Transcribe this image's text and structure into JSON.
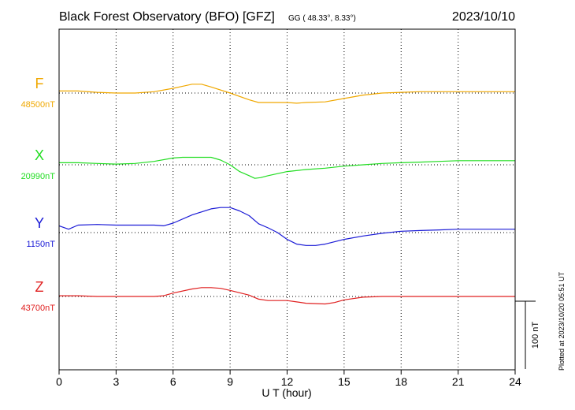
{
  "header": {
    "title": "Black Forest Observatory (BFO)  [GFZ]",
    "coords": "GG ( 48.33°,   8.33°)",
    "date": "2023/10/10"
  },
  "footer": {
    "plotted_note": "Plotted at 2023/10/20 05:51 UT"
  },
  "chart_data": {
    "type": "line",
    "title": "Black Forest Observatory (BFO)  [GFZ]",
    "xlabel": "U T (hour)",
    "ylabel": "",
    "x_ticks": [
      "0",
      "3",
      "6",
      "9",
      "12",
      "15",
      "18",
      "21",
      "24"
    ],
    "xlim": [
      0,
      24
    ],
    "grid": true,
    "scale_bar": {
      "label": "100 nT",
      "value_nT": 100
    },
    "series": [
      {
        "name": "F",
        "baseline_label": "48500nT",
        "baseline_nT": 48500,
        "color": "#f0a800",
        "x": [
          0,
          1,
          2,
          3,
          4,
          5,
          6,
          6.5,
          7,
          7.5,
          8,
          9,
          10,
          10.5,
          11,
          11.5,
          12,
          12.5,
          13,
          14,
          15,
          16,
          17,
          18,
          19,
          20,
          21,
          22,
          23,
          24
        ],
        "y": [
          48503,
          48503,
          48501,
          48500,
          48500,
          48502,
          48507,
          48510,
          48513,
          48513,
          48509,
          48500,
          48490,
          48486,
          48486,
          48486,
          48486,
          48485,
          48486,
          48487,
          48492,
          48497,
          48500,
          48501,
          48502,
          48502,
          48502,
          48502,
          48502,
          48502
        ]
      },
      {
        "name": "X",
        "baseline_label": "20990nT",
        "baseline_nT": 20990,
        "color": "#22dd22",
        "x": [
          0,
          1,
          2,
          3,
          4,
          5,
          6,
          6.5,
          7,
          8,
          8.5,
          9,
          9.5,
          10,
          10.3,
          10.6,
          11,
          12,
          13,
          14,
          15,
          16,
          17,
          18,
          19,
          20,
          21,
          22,
          23,
          24
        ],
        "y": [
          20993,
          20993,
          20992,
          20991,
          20992,
          20995,
          21000,
          21001,
          21001,
          21001,
          20997,
          20990,
          20980,
          20974,
          20970,
          20971,
          20974,
          20980,
          20983,
          20985,
          20988,
          20990,
          20992,
          20993,
          20994,
          20995,
          20996,
          20996,
          20996,
          20996
        ]
      },
      {
        "name": "Y",
        "baseline_label": "1150nT",
        "baseline_nT": 1150,
        "color": "#1a1ad6",
        "x": [
          0,
          0.5,
          1,
          2,
          3,
          4,
          5,
          5.5,
          6,
          7,
          8,
          8.5,
          9,
          9.5,
          10,
          10.5,
          11,
          11.5,
          12,
          12.5,
          13,
          13.5,
          14,
          15,
          16,
          17,
          18,
          19,
          20,
          21,
          22,
          23,
          24
        ],
        "y": [
          1160,
          1155,
          1161,
          1162,
          1161,
          1161,
          1161,
          1160,
          1164,
          1176,
          1185,
          1187,
          1187,
          1182,
          1175,
          1163,
          1157,
          1150,
          1140,
          1133,
          1131,
          1131,
          1133,
          1140,
          1145,
          1149,
          1152,
          1153,
          1154,
          1155,
          1155,
          1155,
          1155
        ]
      },
      {
        "name": "Z",
        "baseline_label": "43700nT",
        "baseline_nT": 43700,
        "color": "#e02020",
        "x": [
          0,
          1,
          2,
          3,
          4,
          5,
          5.5,
          6,
          7,
          7.5,
          8,
          8.5,
          9,
          10,
          10.5,
          11,
          12,
          12.5,
          13,
          14,
          14.5,
          15,
          16,
          17,
          18,
          19,
          20,
          21,
          22,
          23,
          24
        ],
        "y": [
          43701,
          43701,
          43700,
          43700,
          43700,
          43700,
          43701,
          43705,
          43711,
          43713,
          43713,
          43712,
          43709,
          43702,
          43696,
          43694,
          43694,
          43692,
          43690,
          43689,
          43691,
          43695,
          43699,
          43700,
          43700,
          43700,
          43700,
          43700,
          43700,
          43700,
          43700
        ]
      }
    ]
  }
}
